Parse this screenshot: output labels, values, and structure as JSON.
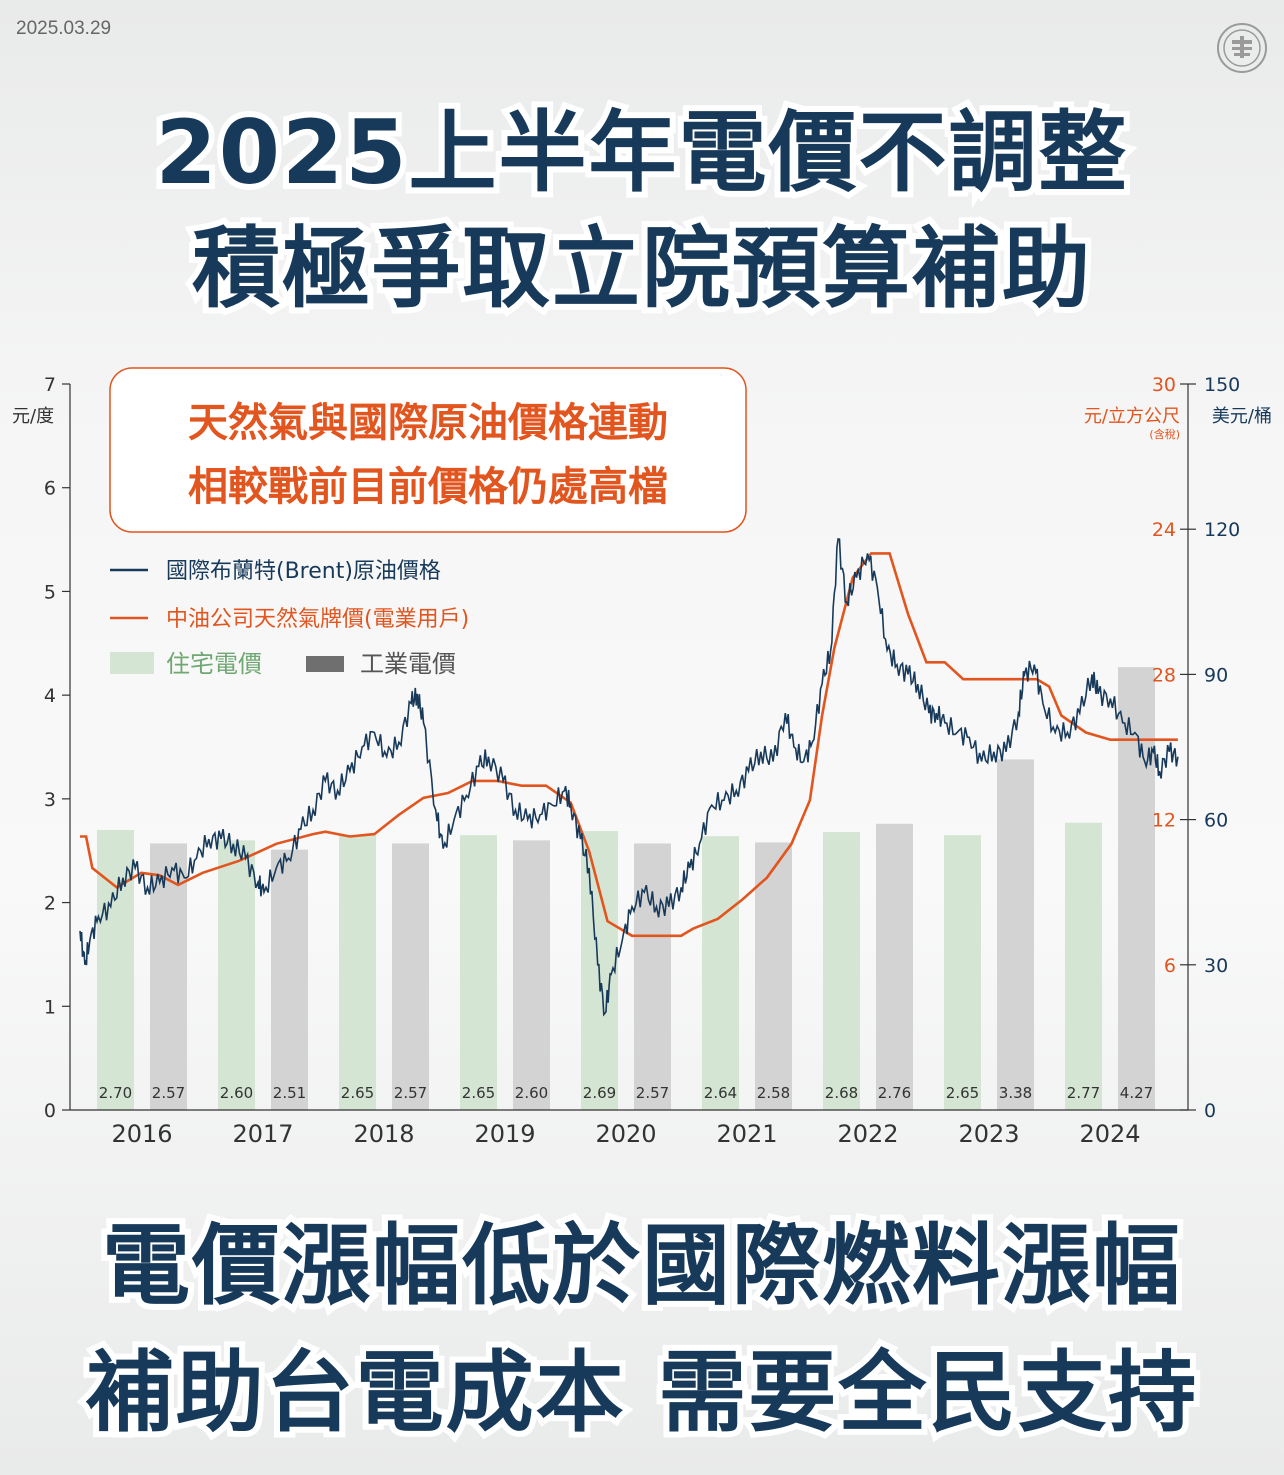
{
  "date": "2025.03.29",
  "title_line1": "2025上半年電價不調整",
  "title_line2": "積極爭取立院預算補助",
  "bottom_line1": "電價漲幅低於國際燃料漲幅",
  "bottom_line2": "補助台電成本  需要全民支持",
  "colors": {
    "navy": "#183a5a",
    "orange": "#e2551f",
    "residential": "#d5e5d3",
    "industrial": "#d3d3d3"
  },
  "chart_data": {
    "type": "bar+line",
    "callout_line1": "天然氣與國際原油價格連動",
    "callout_line2": "相較戰前目前價格仍處高檔",
    "left_axis_unit": "元/度",
    "right_axis1_unit": "元/立方公尺",
    "right_axis1_note": "(含稅)",
    "right_axis2_unit": "美元/桶",
    "left_ticks": [
      "0",
      "1",
      "2",
      "3",
      "4",
      "5",
      "6",
      "7"
    ],
    "right1_ticks": [
      "6",
      "12",
      "24",
      "28",
      "30"
    ],
    "right2_ticks": [
      "0",
      "30",
      "60",
      "90",
      "120",
      "150"
    ],
    "legend": {
      "brent": "國際布蘭特(Brent)原油價格",
      "gas": "中油公司天然氣牌價(電業用戶)",
      "residential": "住宅電價",
      "industrial": "工業電價"
    },
    "categories": [
      "2016",
      "2017",
      "2018",
      "2019",
      "2020",
      "2021",
      "2022",
      "2023",
      "2024"
    ],
    "series": [
      {
        "name": "住宅電價",
        "values": [
          2.7,
          2.6,
          2.65,
          2.65,
          2.69,
          2.64,
          2.68,
          2.65,
          2.77
        ]
      },
      {
        "name": "工業電價",
        "values": [
          2.57,
          2.51,
          2.57,
          2.6,
          2.57,
          2.58,
          2.76,
          3.38,
          4.27
        ]
      }
    ],
    "bar_labels": {
      "residential": [
        "2.70",
        "2.60",
        "2.65",
        "2.65",
        "2.69",
        "2.64",
        "2.68",
        "2.65",
        "2.77"
      ],
      "industrial": [
        "2.57",
        "2.51",
        "2.57",
        "2.60",
        "2.57",
        "2.58",
        "2.76",
        "3.38",
        "4.27"
      ]
    },
    "ylim_left": [
      0,
      7
    ],
    "ylim_right_brent": [
      0,
      150
    ],
    "brent_series": {
      "name": "國際布蘭特(Brent)原油價格",
      "x": [
        2016.0,
        2016.04,
        2016.08,
        2016.15,
        2016.25,
        2016.35,
        2016.45,
        2016.55,
        2016.65,
        2016.75,
        2016.85,
        2016.95,
        2017.05,
        2017.15,
        2017.25,
        2017.35,
        2017.45,
        2017.5,
        2017.6,
        2017.7,
        2017.8,
        2017.9,
        2018.0,
        2018.1,
        2018.2,
        2018.3,
        2018.4,
        2018.5,
        2018.6,
        2018.7,
        2018.75,
        2018.8,
        2018.9,
        2018.96,
        2019.05,
        2019.15,
        2019.25,
        2019.33,
        2019.45,
        2019.55,
        2019.65,
        2019.75,
        2019.85,
        2019.95,
        2020.0,
        2020.08,
        2020.15,
        2020.22,
        2020.28,
        2020.33,
        2020.42,
        2020.5,
        2020.6,
        2020.7,
        2020.8,
        2020.9,
        2020.97,
        2021.05,
        2021.15,
        2021.25,
        2021.35,
        2021.45,
        2021.55,
        2021.65,
        2021.75,
        2021.82,
        2021.9,
        2021.97,
        2022.05,
        2022.12,
        2022.18,
        2022.25,
        2022.33,
        2022.42,
        2022.5,
        2022.58,
        2022.66,
        2022.75,
        2022.83,
        2022.92,
        2022.98,
        2023.05,
        2023.15,
        2023.25,
        2023.35,
        2023.45,
        2023.55,
        2023.65,
        2023.7,
        2023.78,
        2023.85,
        2023.95,
        2024.05,
        2024.15,
        2024.25,
        2024.3,
        2024.4,
        2024.5,
        2024.6,
        2024.68,
        2024.75,
        2024.8,
        2024.88,
        2024.95
      ],
      "y": [
        37,
        30,
        35,
        40,
        42,
        48,
        50,
        46,
        47,
        50,
        48,
        52,
        56,
        56,
        55,
        52,
        47,
        45,
        50,
        52,
        58,
        62,
        68,
        66,
        70,
        75,
        78,
        73,
        76,
        84,
        86,
        80,
        62,
        54,
        60,
        65,
        71,
        73,
        68,
        62,
        60,
        61,
        63,
        66,
        63,
        56,
        50,
        30,
        20,
        28,
        35,
        42,
        45,
        42,
        42,
        46,
        50,
        55,
        63,
        64,
        66,
        70,
        74,
        72,
        82,
        75,
        72,
        76,
        88,
        95,
        118,
        105,
        110,
        115,
        108,
        95,
        92,
        90,
        88,
        82,
        82,
        80,
        78,
        77,
        72,
        74,
        74,
        82,
        90,
        92,
        84,
        78,
        78,
        82,
        90,
        86,
        85,
        80,
        78,
        72,
        74,
        70,
        74,
        73
      ]
    },
    "gas_series": {
      "name": "中油公司天然氣牌價(電業用戶)",
      "x": [
        2016.0,
        2016.05,
        2016.1,
        2016.3,
        2016.5,
        2016.65,
        2016.8,
        2017.0,
        2017.3,
        2017.6,
        2017.9,
        2018.0,
        2018.2,
        2018.4,
        2018.6,
        2018.8,
        2019.0,
        2019.2,
        2019.4,
        2019.6,
        2019.8,
        2020.0,
        2020.15,
        2020.3,
        2020.5,
        2020.7,
        2020.9,
        2021.0,
        2021.2,
        2021.4,
        2021.6,
        2021.8,
        2021.95,
        2022.05,
        2022.15,
        2022.3,
        2022.45,
        2022.6,
        2022.75,
        2022.9,
        2023.05,
        2023.2,
        2023.4,
        2023.6,
        2023.8,
        2023.9,
        2024.0,
        2024.2,
        2024.4,
        2024.6,
        2024.8,
        2024.95
      ],
      "y": [
        11.3,
        11.3,
        10.0,
        9.2,
        9.8,
        9.7,
        9.3,
        9.8,
        10.3,
        11.0,
        11.4,
        11.5,
        11.3,
        11.4,
        12.2,
        12.9,
        13.1,
        13.6,
        13.6,
        13.4,
        13.4,
        12.7,
        10.7,
        7.8,
        7.2,
        7.2,
        7.2,
        7.5,
        7.9,
        8.7,
        9.6,
        11.0,
        12.8,
        16.3,
        19.1,
        22.0,
        23.0,
        23.0,
        20.5,
        18.5,
        18.5,
        17.8,
        17.8,
        17.8,
        17.8,
        17.5,
        16.3,
        15.6,
        15.3,
        15.3,
        15.3,
        15.3
      ]
    }
  }
}
